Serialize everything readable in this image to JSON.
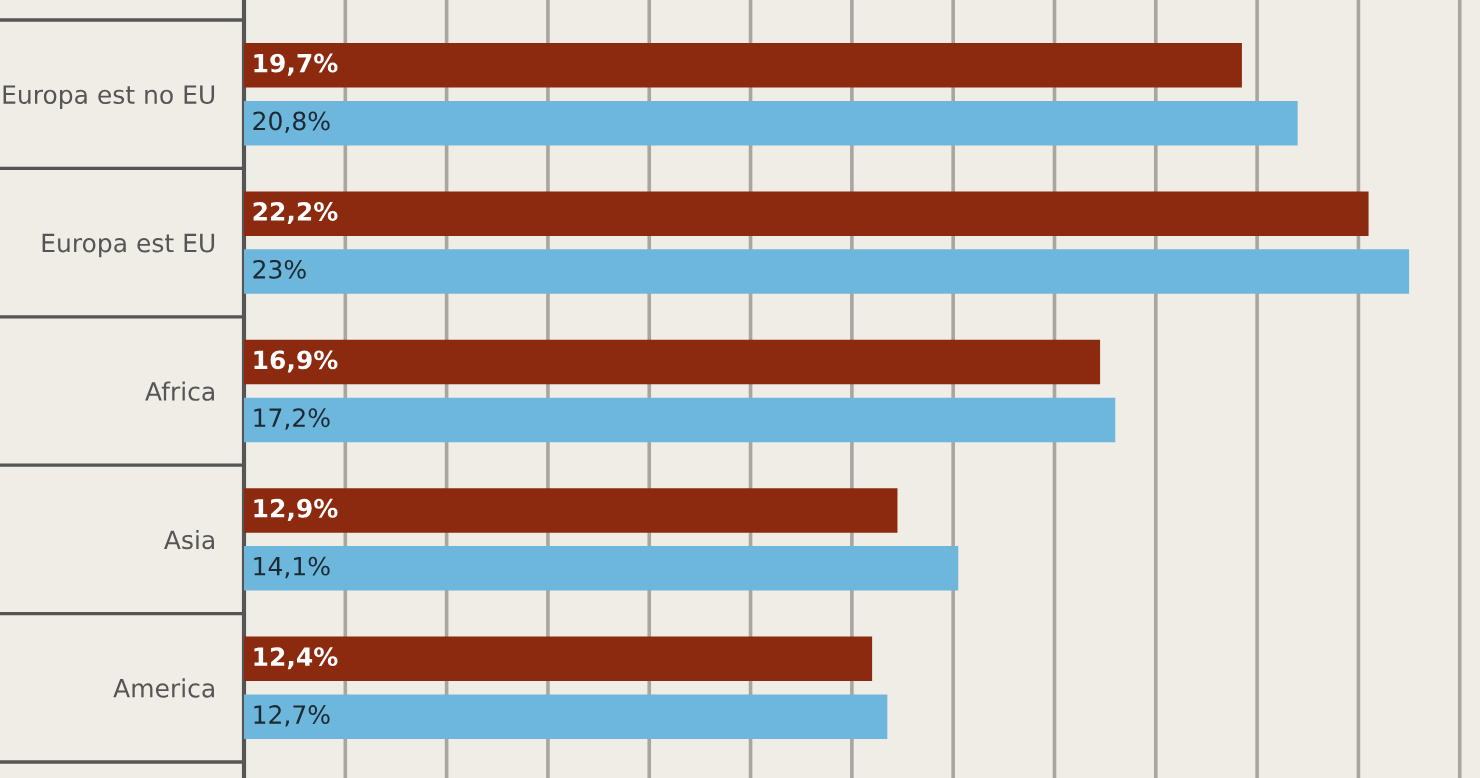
{
  "chart_data": {
    "type": "bar",
    "orientation": "horizontal",
    "categories": [
      "Europa est no EU",
      "Europa est EU",
      "Africa",
      "Asia",
      "America"
    ],
    "series": [
      {
        "color": "#8b2a0f",
        "values": [
          19.7,
          22.2,
          16.9,
          12.9,
          12.4
        ],
        "value_labels": [
          "19,7%",
          "22,2%",
          "16,9%",
          "12,9%",
          "12,4%"
        ]
      },
      {
        "color": "#6cb7db",
        "values": [
          20.8,
          23,
          17.2,
          14.1,
          12.7
        ],
        "value_labels": [
          "20,8%",
          "23%",
          "17,2%",
          "14,1%",
          "12,7%"
        ]
      }
    ],
    "xlim": [
      0,
      24.4
    ],
    "xticks": [
      {
        "value": 2,
        "label": null
      },
      {
        "value": 4,
        "label": null
      },
      {
        "value": 6,
        "label": null
      },
      {
        "value": 8,
        "label": null
      },
      {
        "value": 10,
        "label": null
      },
      {
        "value": 12,
        "label": null
      },
      {
        "value": 14,
        "label": null
      },
      {
        "value": 16,
        "label": null
      },
      {
        "value": 18,
        "label": null
      },
      {
        "value": 20,
        "label": null
      },
      {
        "value": 22,
        "label": null
      },
      {
        "value": 24,
        "label": null
      }
    ],
    "grid": "x",
    "legend": false,
    "tick_labels": "y"
  }
}
